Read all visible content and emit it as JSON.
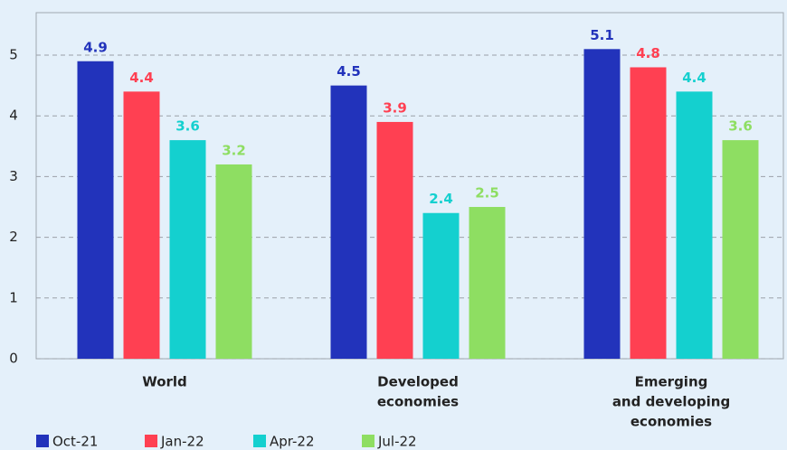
{
  "chart_data": {
    "type": "bar",
    "categories": [
      [
        "World"
      ],
      [
        "Developed",
        "economies"
      ],
      [
        "Emerging",
        "and developing",
        "economies"
      ]
    ],
    "series": [
      {
        "name": "Oct-21",
        "color": "#2233bb",
        "values": [
          4.9,
          4.5,
          5.1
        ]
      },
      {
        "name": "Jan-22",
        "color": "#ff4052",
        "values": [
          4.4,
          3.9,
          4.8
        ]
      },
      {
        "name": "Apr-22",
        "color": "#14d0cf",
        "values": [
          3.6,
          2.4,
          4.4
        ]
      },
      {
        "name": "Jul-22",
        "color": "#8ede62",
        "values": [
          3.2,
          2.5,
          3.6
        ]
      }
    ],
    "ylim": [
      0,
      5.7
    ],
    "yticks": [
      0,
      1,
      2,
      3,
      4,
      5
    ],
    "grid": true
  }
}
